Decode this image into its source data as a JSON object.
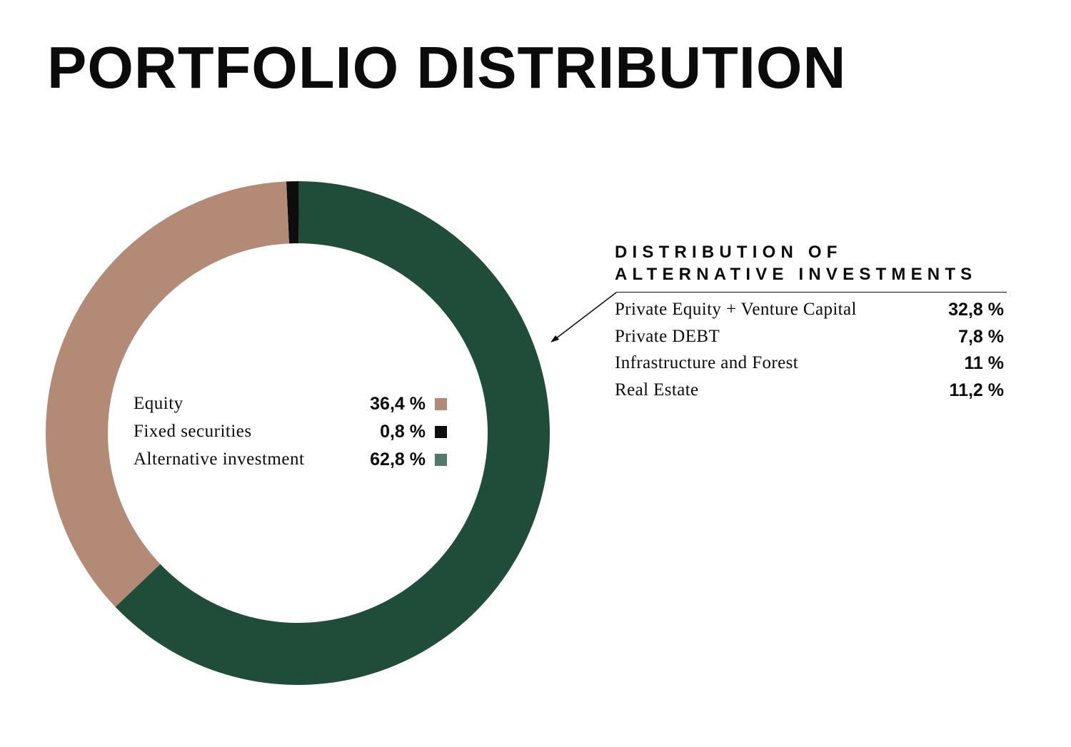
{
  "title": "PORTFOLIO DISTRIBUTION",
  "chart_data": {
    "type": "pie",
    "title": "PORTFOLIO DISTRIBUTION",
    "categories": [
      "Equity",
      "Fixed securities",
      "Alternative investment"
    ],
    "values": [
      36.4,
      0.8,
      62.8
    ],
    "colors": [
      "#b28a75",
      "#0d0d0d",
      "#204d3a"
    ],
    "hole": "donut",
    "value_labels": [
      "36,4 %",
      "0,8 %",
      "62,8 %"
    ],
    "breakdown": {
      "title_line1": "DISTRIBUTION OF",
      "title_line2": "ALTERNATIVE INVESTMENTS",
      "of_category": "Alternative investment",
      "categories": [
        "Private Equity + Venture Capital",
        "Private DEBT",
        "Infrastructure and Forest",
        "Real Estate"
      ],
      "values": [
        32.8,
        7.8,
        11,
        11.2
      ],
      "value_labels": [
        "32,8 %",
        "7,8 %",
        "11 %",
        "11,2 %"
      ]
    }
  },
  "legend_swatch_colors": [
    "#b28a75",
    "#0d0d0d",
    "#4f7a69"
  ]
}
